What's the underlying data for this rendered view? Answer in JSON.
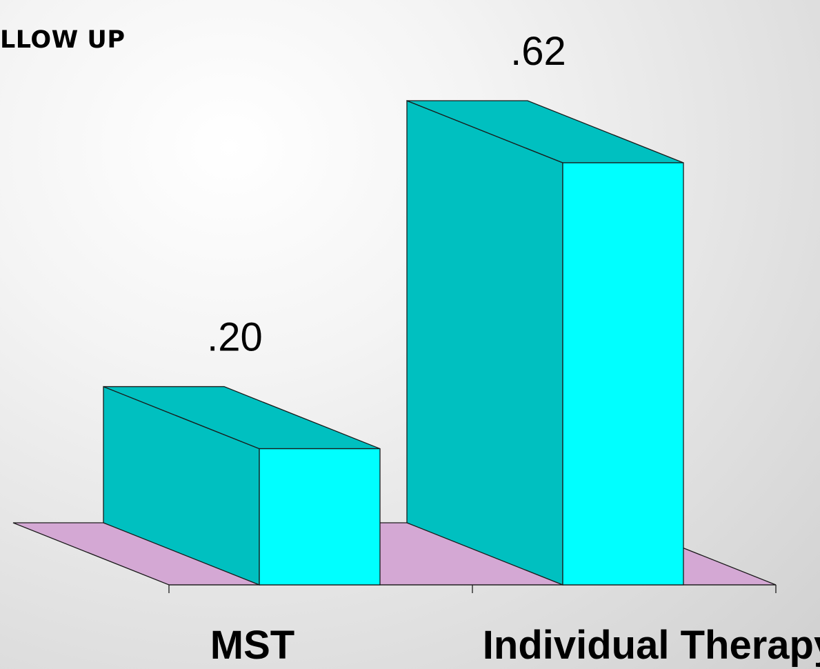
{
  "title": "LLOW UP",
  "chart_data": {
    "type": "bar",
    "three_d": true,
    "title": "LLOW UP",
    "categories": [
      "MST",
      "Individual Therapy"
    ],
    "values": [
      0.2,
      0.62
    ],
    "value_labels": [
      ".20",
      ".62"
    ],
    "xlabel": "",
    "ylabel": "",
    "ylim": [
      0,
      0.62
    ],
    "grid": false,
    "legend": "none",
    "colors": {
      "bar_front": "#00ffff",
      "bar_side": "#00c0c0",
      "floor": "#d4a8d4",
      "outline": "#1a1a1a"
    }
  }
}
